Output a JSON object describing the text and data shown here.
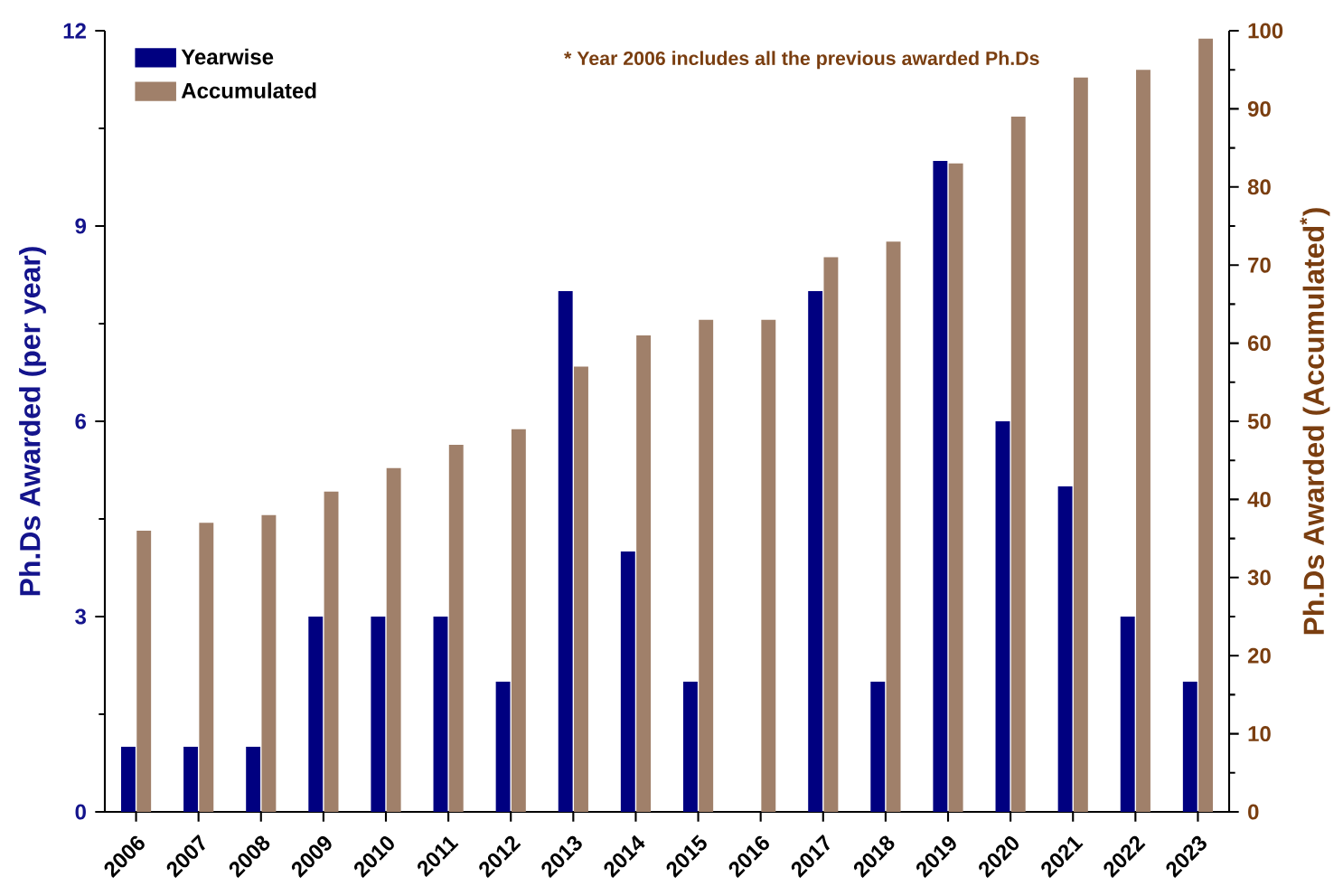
{
  "chart_data": {
    "type": "bar",
    "categories": [
      "2006",
      "2007",
      "2008",
      "2009",
      "2010",
      "2011",
      "2012",
      "2013",
      "2014",
      "2015",
      "2016",
      "2017",
      "2018",
      "2019",
      "2020",
      "2021",
      "2022",
      "2023"
    ],
    "series": [
      {
        "name": "Yearwise",
        "color": "#000080",
        "axis": "y",
        "values": [
          1,
          1,
          1,
          3,
          3,
          3,
          2,
          8,
          4,
          2,
          0,
          8,
          2,
          10,
          6,
          5,
          3,
          2
        ]
      },
      {
        "name": "Accumulated",
        "color": "#a0806a",
        "axis": "y2",
        "values": [
          36,
          37,
          38,
          41,
          44,
          47,
          49,
          57,
          61,
          63,
          63,
          71,
          73,
          83,
          89,
          94,
          95,
          99
        ]
      }
    ],
    "ylabel": "Ph.Ds Awarded (per year)",
    "y2label": "Ph.Ds Awarded (Accumulated$^{*}$)",
    "ylim": [
      0,
      12
    ],
    "yticks": [
      0,
      3,
      6,
      9,
      12
    ],
    "y2lim": [
      0,
      100
    ],
    "y2ticks": [
      0,
      10,
      20,
      30,
      40,
      50,
      60,
      70,
      80,
      90,
      100
    ],
    "legend": "top left",
    "annotations": [
      "* Year 2006 includes all the previous awarded Ph.Ds"
    ]
  }
}
